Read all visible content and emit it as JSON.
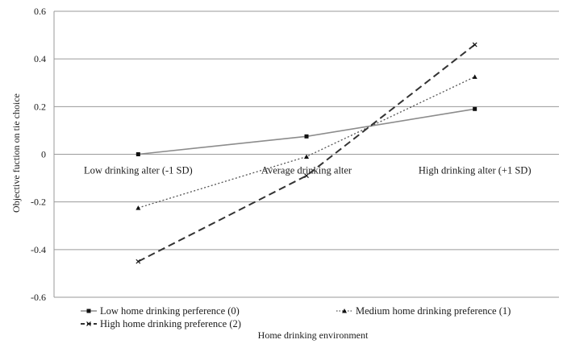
{
  "chart_data": {
    "type": "line",
    "title": "",
    "xlabel": "Home drinking environment",
    "ylabel": "Objective fuction on tie choice",
    "categories": [
      "Low drinking alter (-1 SD)",
      "Average drinking alter",
      "High drinking alter (+1 SD)"
    ],
    "ylim": [
      -0.6,
      0.6
    ],
    "yticks": [
      "0.6",
      "0.4",
      "0.2",
      "0",
      "-0.2",
      "-0.4",
      "-0.6"
    ],
    "grid": true,
    "legend_position": "bottom",
    "series": [
      {
        "name": "Low home drinking perference (0)",
        "values": [
          0.0,
          0.075,
          0.19
        ],
        "color": "#8c8c8c",
        "style": "solid",
        "marker": "square"
      },
      {
        "name": "Medium home drinking preference (1)",
        "values": [
          -0.225,
          -0.01,
          0.325
        ],
        "color": "#555555",
        "style": "dotted",
        "marker": "triangle"
      },
      {
        "name": "High home drinking preference (2)",
        "values": [
          -0.45,
          -0.09,
          0.46
        ],
        "color": "#333333",
        "style": "dashed",
        "marker": "cross"
      }
    ]
  }
}
